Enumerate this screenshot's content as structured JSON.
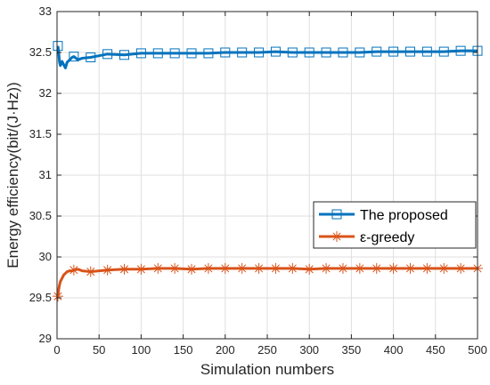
{
  "chart_data": {
    "type": "line",
    "xlabel": "Simulation numbers",
    "ylabel": "Energy efficiency(bit/(J·Hz))",
    "xlim": [
      0,
      500
    ],
    "ylim": [
      29,
      33
    ],
    "xticks": [
      0,
      50,
      100,
      150,
      200,
      250,
      300,
      350,
      400,
      450,
      500
    ],
    "yticks": [
      29,
      29.5,
      30,
      30.5,
      31,
      31.5,
      32,
      32.5,
      33
    ],
    "grid": true,
    "legend_position": "right-middle",
    "series": [
      {
        "name": "The proposed",
        "color": "#0072BD",
        "marker": "square",
        "x": [
          1,
          2,
          3,
          4,
          5,
          6,
          8,
          10,
          12,
          15,
          18,
          20,
          25,
          30,
          40,
          50,
          60,
          80,
          100,
          120,
          140,
          160,
          180,
          200,
          220,
          240,
          260,
          280,
          300,
          320,
          340,
          360,
          380,
          400,
          420,
          440,
          460,
          480,
          500
        ],
        "y": [
          32.58,
          32.5,
          32.38,
          32.34,
          32.37,
          32.39,
          32.35,
          32.31,
          32.38,
          32.41,
          32.44,
          32.45,
          32.41,
          32.43,
          32.44,
          32.46,
          32.48,
          32.47,
          32.49,
          32.49,
          32.49,
          32.49,
          32.49,
          32.5,
          32.5,
          32.5,
          32.51,
          32.5,
          32.5,
          32.5,
          32.5,
          32.5,
          32.51,
          32.51,
          32.51,
          32.51,
          32.51,
          32.52,
          32.52
        ],
        "marker_x": [
          1,
          20,
          40,
          60,
          80,
          100,
          120,
          140,
          160,
          180,
          200,
          220,
          240,
          260,
          280,
          300,
          320,
          340,
          360,
          380,
          400,
          420,
          440,
          460,
          480,
          500
        ]
      },
      {
        "name": "ε-greedy",
        "color": "#D95319",
        "marker": "asterisk",
        "x": [
          1,
          2,
          3,
          4,
          5,
          6,
          8,
          10,
          12,
          15,
          18,
          20,
          25,
          30,
          40,
          50,
          60,
          80,
          100,
          120,
          140,
          160,
          180,
          200,
          220,
          240,
          260,
          280,
          300,
          320,
          340,
          360,
          380,
          400,
          420,
          440,
          460,
          480,
          500
        ],
        "y": [
          29.52,
          29.6,
          29.66,
          29.7,
          29.72,
          29.74,
          29.78,
          29.8,
          29.82,
          29.83,
          29.83,
          29.84,
          29.85,
          29.83,
          29.82,
          29.83,
          29.84,
          29.85,
          29.85,
          29.86,
          29.86,
          29.85,
          29.86,
          29.86,
          29.86,
          29.86,
          29.86,
          29.86,
          29.85,
          29.86,
          29.86,
          29.86,
          29.86,
          29.86,
          29.86,
          29.86,
          29.86,
          29.86,
          29.86
        ],
        "marker_x": [
          1,
          20,
          40,
          60,
          80,
          100,
          120,
          140,
          160,
          180,
          200,
          220,
          240,
          260,
          280,
          300,
          320,
          340,
          360,
          380,
          400,
          420,
          440,
          460,
          480,
          500
        ]
      }
    ]
  }
}
